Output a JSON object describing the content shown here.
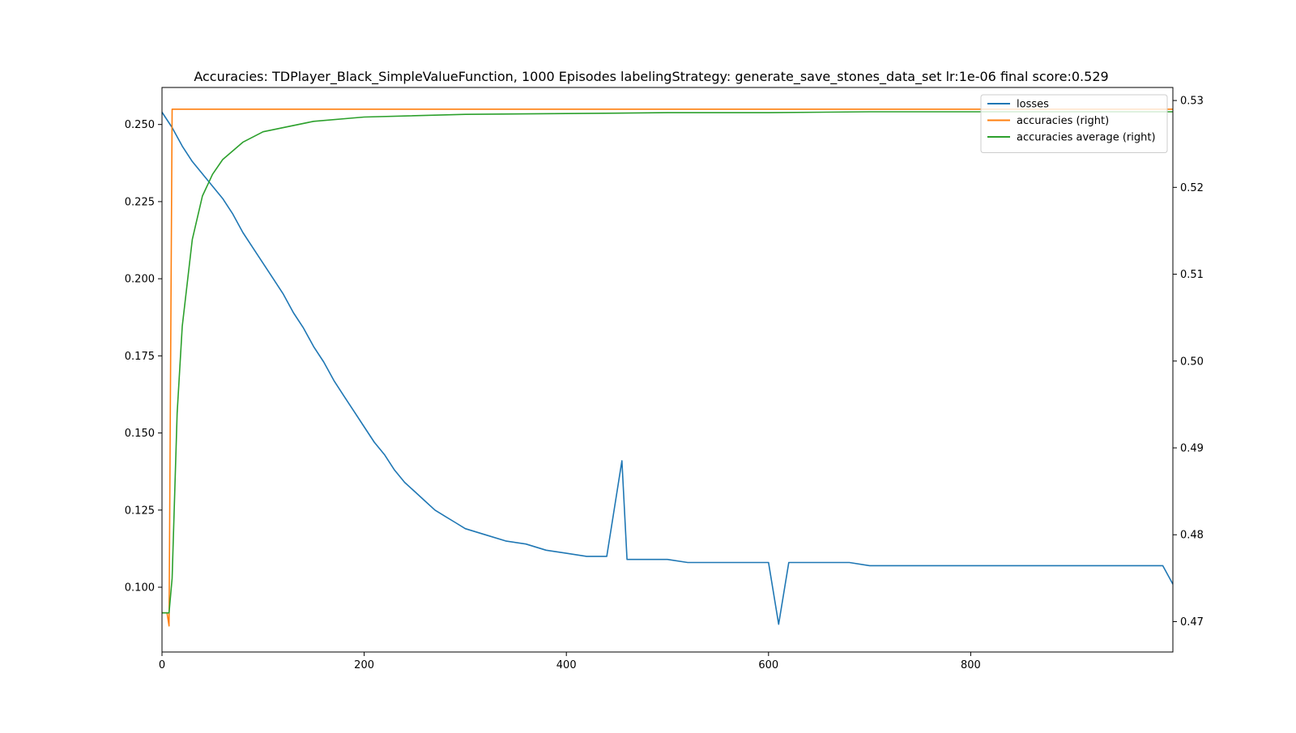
{
  "chart_data": {
    "type": "line",
    "title": "Accuracies: TDPlayer_Black_SimpleValueFunction, 1000 Episodes labelingStrategy: generate_save_stones_data_set lr:1e-06 final score:0.529",
    "xlabel": "",
    "ylabel": "",
    "xlim": [
      0,
      1000
    ],
    "ylim_left": [
      0.079,
      0.262
    ],
    "ylim_right": [
      0.4665,
      0.5315
    ],
    "x_ticks": [
      "0",
      "200",
      "400",
      "600",
      "800"
    ],
    "y_left_ticks": [
      "0.100",
      "0.125",
      "0.150",
      "0.175",
      "0.200",
      "0.225",
      "0.250"
    ],
    "y_right_ticks": [
      "0.47",
      "0.48",
      "0.49",
      "0.50",
      "0.51",
      "0.52",
      "0.53"
    ],
    "grid": false,
    "legend_position": "top-right",
    "legend": [
      "losses",
      "accuracies (right)",
      "accuracies average (right)"
    ],
    "series": [
      {
        "name": "losses",
        "axis": "left",
        "color": "#1f77b4",
        "x": [
          0,
          10,
          20,
          30,
          40,
          50,
          60,
          70,
          80,
          90,
          100,
          110,
          120,
          130,
          140,
          150,
          160,
          170,
          180,
          190,
          200,
          210,
          220,
          230,
          240,
          250,
          260,
          270,
          280,
          290,
          300,
          320,
          340,
          360,
          380,
          400,
          420,
          440,
          455,
          460,
          480,
          500,
          520,
          540,
          560,
          580,
          600,
          610,
          620,
          640,
          660,
          680,
          700,
          720,
          740,
          760,
          780,
          800,
          820,
          840,
          860,
          880,
          900,
          920,
          940,
          960,
          980,
          990,
          1000
        ],
        "values": [
          0.254,
          0.249,
          0.243,
          0.238,
          0.234,
          0.23,
          0.226,
          0.221,
          0.215,
          0.21,
          0.205,
          0.2,
          0.195,
          0.189,
          0.184,
          0.178,
          0.173,
          0.167,
          0.162,
          0.157,
          0.152,
          0.147,
          0.143,
          0.138,
          0.134,
          0.131,
          0.128,
          0.125,
          0.123,
          0.121,
          0.119,
          0.117,
          0.115,
          0.114,
          0.112,
          0.111,
          0.11,
          0.11,
          0.141,
          0.109,
          0.109,
          0.109,
          0.108,
          0.108,
          0.108,
          0.108,
          0.108,
          0.088,
          0.108,
          0.108,
          0.108,
          0.108,
          0.107,
          0.107,
          0.107,
          0.107,
          0.107,
          0.107,
          0.107,
          0.107,
          0.107,
          0.107,
          0.107,
          0.107,
          0.107,
          0.107,
          0.107,
          0.107,
          0.101
        ]
      },
      {
        "name": "accuracies (right)",
        "axis": "right",
        "color": "#ff7f0e",
        "x": [
          0,
          5,
          7,
          10,
          12,
          1000
        ],
        "values": [
          0.471,
          0.471,
          0.4695,
          0.529,
          0.529,
          0.529
        ]
      },
      {
        "name": "accuracies average (right)",
        "axis": "right",
        "color": "#2ca02c",
        "x": [
          0,
          7,
          10,
          15,
          20,
          30,
          40,
          50,
          60,
          80,
          100,
          150,
          200,
          300,
          400,
          500,
          600,
          700,
          800,
          900,
          1000
        ],
        "values": [
          0.471,
          0.471,
          0.475,
          0.494,
          0.504,
          0.514,
          0.519,
          0.5215,
          0.5232,
          0.5252,
          0.5264,
          0.5276,
          0.5281,
          0.5284,
          0.5285,
          0.5286,
          0.5286,
          0.5287,
          0.5287,
          0.5287,
          0.5287
        ]
      }
    ]
  }
}
